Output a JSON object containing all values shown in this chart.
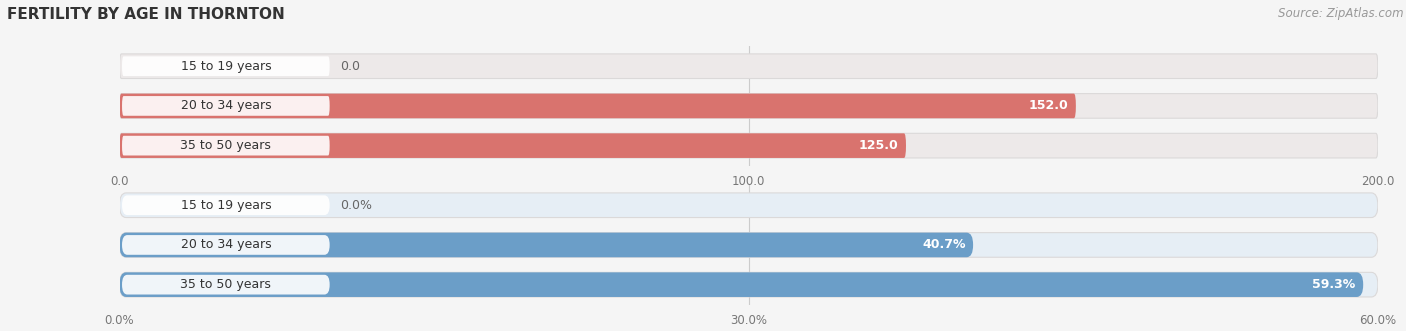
{
  "title": "FERTILITY BY AGE IN THORNTON",
  "source_text": "Source: ZipAtlas.com",
  "top_chart": {
    "categories": [
      "15 to 19 years",
      "20 to 34 years",
      "35 to 50 years"
    ],
    "values": [
      0.0,
      152.0,
      125.0
    ],
    "xlim": [
      0,
      200
    ],
    "xticks": [
      0.0,
      100.0,
      200.0
    ],
    "xtick_labels": [
      "0.0",
      "100.0",
      "200.0"
    ],
    "bar_color": "#d9736e",
    "bar_bg_color": "#ede9e9",
    "label_inside_color": "#ffffff",
    "label_outside_color": "#666666",
    "bar_height": 0.62,
    "is_percent": false
  },
  "bottom_chart": {
    "categories": [
      "15 to 19 years",
      "20 to 34 years",
      "35 to 50 years"
    ],
    "values": [
      0.0,
      40.7,
      59.3
    ],
    "xlim": [
      0,
      60
    ],
    "xticks": [
      0.0,
      30.0,
      60.0
    ],
    "xtick_labels": [
      "0.0%",
      "30.0%",
      "60.0%"
    ],
    "bar_color": "#6b9ec8",
    "bar_bg_color": "#e6eef5",
    "label_inside_color": "#ffffff",
    "label_outside_color": "#666666",
    "bar_height": 0.62,
    "is_percent": true
  },
  "bg_color": "#f5f5f5",
  "bar_bg_outer_color": "#dbd9d9",
  "label_font_size": 9,
  "category_font_size": 9,
  "title_font_size": 11,
  "source_font_size": 8.5,
  "axis_font_size": 8.5,
  "grid_color": "#cccccc",
  "text_color": "#333333",
  "tick_color": "#777777"
}
